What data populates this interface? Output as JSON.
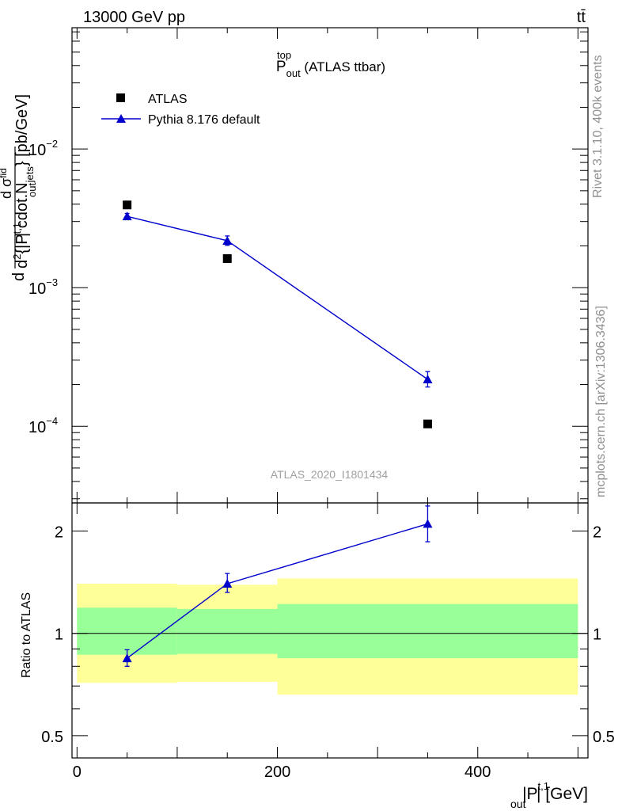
{
  "header": {
    "energy_label": "13000 GeV pp",
    "process_label": "tt̄"
  },
  "side_labels": {
    "rivet": "Rivet 3.1.10,  400k events",
    "mcplots": "mcplots.cern.ch [arXiv:1306.3436]"
  },
  "watermark": "ATLAS_2020_I1801434",
  "chart_data": [
    {
      "type": "scatter",
      "panel": "main",
      "title": {
        "main": "P",
        "sup": "top",
        "sub": "out",
        "suffix": " (ATLAS ttbar)"
      },
      "ylabel": {
        "prefix": "d",
        "numerator": "d σ",
        "numerator_sup": "fid",
        "denominator": "d",
        "denominator_sup": "2",
        "rest": "{|P",
        "rest_sup": "t,1",
        "rest_sub": "out",
        "rest2": "| cdot.N",
        "rest2_sub": "jets",
        "tail": "} [pb/GeV]"
      },
      "yscale": "log",
      "xlim": [
        -5,
        510
      ],
      "ylim": [
        2.8e-05,
        0.075
      ],
      "y_ticks": [
        {
          "value": 0.0001,
          "base": "10",
          "exp": "−4"
        },
        {
          "value": 0.001,
          "base": "10",
          "exp": "−3"
        },
        {
          "value": 0.01,
          "base": "10",
          "exp": "−2"
        }
      ],
      "legend": {
        "position": "top-left",
        "entries": [
          {
            "name": "ATLAS",
            "marker": "square"
          },
          {
            "name": "Pythia 8.176 default",
            "marker": "triangle"
          }
        ]
      },
      "series": [
        {
          "name": "ATLAS",
          "color": "#000000",
          "marker": "square",
          "points": [
            {
              "x": 50,
              "y": 0.00395
            },
            {
              "x": 150,
              "y": 0.00162
            },
            {
              "x": 350,
              "y": 0.000104
            }
          ]
        },
        {
          "name": "Pythia 8.176 default",
          "color": "#0000cc",
          "marker": "triangle",
          "points": [
            {
              "x": 50,
              "y": 0.00327,
              "ylo": 0.00312,
              "yhi": 0.00343
            },
            {
              "x": 150,
              "y": 0.00218,
              "ylo": 0.00202,
              "yhi": 0.00236
            },
            {
              "x": 350,
              "y": 0.000218,
              "ylo": 0.000192,
              "yhi": 0.000248
            }
          ]
        }
      ]
    },
    {
      "type": "scatter",
      "panel": "ratio",
      "ylabel": "Ratio to ATLAS",
      "xlabel": {
        "main": "|P",
        "sup": "t,1",
        "sub": "out",
        "tail": "| [GeV]"
      },
      "yscale": "log",
      "xlim": [
        -5,
        510
      ],
      "ylim": [
        0.43,
        2.42
      ],
      "x_ticks": [
        0,
        200,
        400
      ],
      "y_ticks": [
        {
          "value": 0.5,
          "label": "0.5"
        },
        {
          "value": 1,
          "label": "1"
        },
        {
          "value": 2,
          "label": "2"
        }
      ],
      "bands": [
        {
          "x0": 0,
          "x1": 100,
          "outer": [
            0.715,
            1.4
          ],
          "inner": [
            0.865,
            1.19
          ]
        },
        {
          "x0": 100,
          "x1": 200,
          "outer": [
            0.72,
            1.39
          ],
          "inner": [
            0.87,
            1.18
          ]
        },
        {
          "x0": 200,
          "x1": 500,
          "outer": [
            0.66,
            1.45
          ],
          "inner": [
            0.845,
            1.22
          ]
        }
      ],
      "band_colors": {
        "outer": "#ffff99",
        "inner": "#99ff99"
      },
      "reference_line": 1,
      "series": [
        {
          "name": "Pythia 8.176 default",
          "color": "#0000cc",
          "points": [
            {
              "x": 50,
              "y": 0.845,
              "ylo": 0.8,
              "yhi": 0.895
            },
            {
              "x": 150,
              "y": 1.4,
              "ylo": 1.32,
              "yhi": 1.5
            },
            {
              "x": 350,
              "y": 2.1,
              "ylo": 1.86,
              "yhi": 2.37
            }
          ]
        }
      ]
    }
  ]
}
